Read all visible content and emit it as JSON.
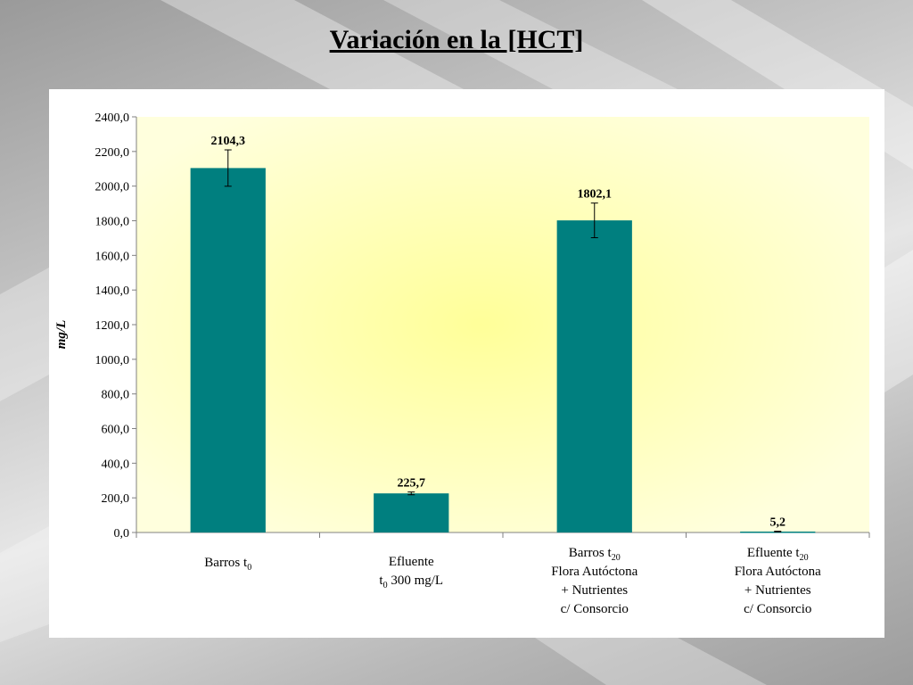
{
  "slide": {
    "title": "Variación en la [HCT]"
  },
  "colors": {
    "bar": "#007f7f",
    "plot_bg_center": "#ffff99",
    "plot_bg_edge": "#ffffdd",
    "axis": "#808080"
  },
  "chart_data": {
    "type": "bar",
    "title": "",
    "ylabel": "mg/L",
    "xlabel": "",
    "ylim": [
      0,
      2400
    ],
    "yticks": [
      0,
      200,
      400,
      600,
      800,
      1000,
      1200,
      1400,
      1600,
      1800,
      2000,
      2200,
      2400
    ],
    "ytick_labels": [
      "0,0",
      "200,0",
      "400,0",
      "600,0",
      "800,0",
      "1000,0",
      "1200,0",
      "1400,0",
      "1600,0",
      "1800,0",
      "2000,0",
      "2200,0",
      "2400,0"
    ],
    "grid": false,
    "legend": "none",
    "categories": [
      [
        {
          "t": "Barros  t",
          "sub": "0"
        }
      ],
      [
        {
          "t": "Efluente"
        },
        {
          "t": "t",
          "sub": "0",
          "after": " 300 mg/L"
        }
      ],
      [
        {
          "t": "Barros t",
          "sub": "20"
        },
        {
          "t": "Flora Autóctona"
        },
        {
          "t": "+ Nutrientes"
        },
        {
          "t": "c/ Consorcio"
        }
      ],
      [
        {
          "t": "Efluente t",
          "sub": "20"
        },
        {
          "t": "Flora Autóctona"
        },
        {
          "t": "+ Nutrientes"
        },
        {
          "t": "c/ Consorcio"
        }
      ]
    ],
    "values": [
      2104.3,
      225.7,
      1802.1,
      5.2
    ],
    "value_labels": [
      "2104,3",
      "225,7",
      "1802,1",
      "5,2"
    ],
    "error_bars": [
      105,
      8,
      100,
      2
    ]
  }
}
